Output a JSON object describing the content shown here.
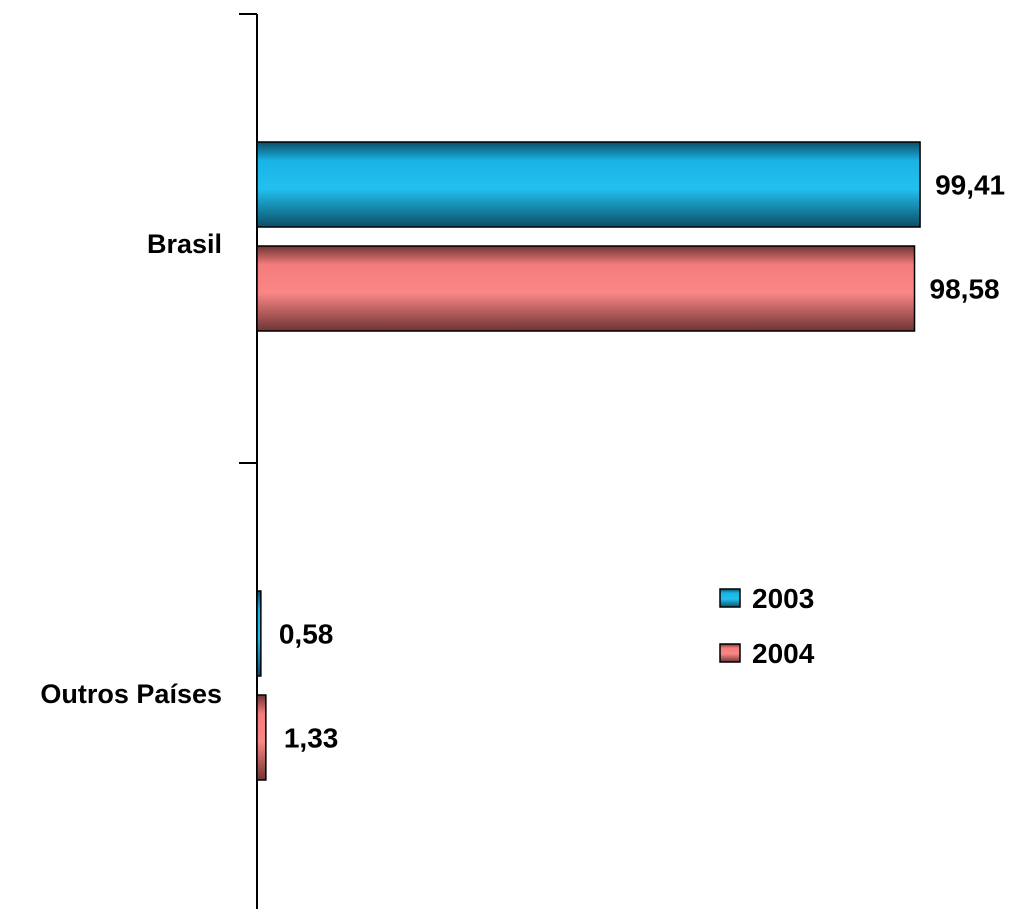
{
  "chart_data": {
    "type": "bar",
    "orientation": "horizontal",
    "categories": [
      "Brasil",
      "Outros Países"
    ],
    "series": [
      {
        "name": "2003",
        "values": [
          99.41,
          0.58
        ],
        "labels": [
          "99,41",
          "0,58"
        ],
        "color": "#1ab3e6"
      },
      {
        "name": "2004",
        "values": [
          98.58,
          1.33
        ],
        "labels": [
          "98,58",
          "1,33"
        ],
        "color": "#f47c7c"
      }
    ],
    "xlim": [
      0,
      100
    ],
    "grid": false,
    "legend": "center-right"
  }
}
